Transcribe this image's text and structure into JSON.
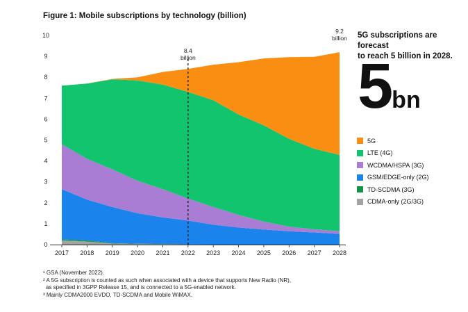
{
  "title": "Figure 1: Mobile subscriptions by technology (billion)",
  "callout": {
    "text_line1": "5G subscriptions are forecast",
    "text_line2": "to reach 5 billion in 2028.",
    "big_number": "5",
    "big_unit": "bn"
  },
  "footnotes": [
    "¹ GSA (November 2022).",
    "² A 5G subscription is counted as such when associated with a device that supports New Radio (NR),",
    "   as specified in 3GPP Release 15, and is connected to a 5G-enabled network.",
    "³ Mainly CDMA2000 EVDO, TD-SCDMA and Mobile WiMAX."
  ],
  "colors": {
    "5G": "#fa8e12",
    "LTE (4G)": "#13c46e",
    "WCDMA/HSPA (3G)": "#a97dd4",
    "GSM/EDGE-only (2G)": "#1b84ec",
    "TD-SCDMA (3G)": "#129447",
    "CDMA-only (2G/3G)": "#a3a3a3"
  },
  "chart_data": {
    "type": "area",
    "stacked": true,
    "x": [
      "2017",
      "2018",
      "2019",
      "2020",
      "2021",
      "2022",
      "2023",
      "2024",
      "2025",
      "2026",
      "2027",
      "2028"
    ],
    "ylim": [
      0,
      10
    ],
    "yticks": [
      "0",
      "1",
      "2",
      "3",
      "4",
      "5",
      "6",
      "7",
      "8",
      "9",
      "10"
    ],
    "grid": false,
    "legend_position": "right",
    "series": [
      {
        "name": "CDMA-only (2G/3G)",
        "values": [
          0.2,
          0.15,
          0.05,
          0.03,
          0.02,
          0.01,
          0,
          0,
          0,
          0,
          0,
          0
        ]
      },
      {
        "name": "TD-SCDMA (3G)",
        "values": [
          0.05,
          0.05,
          0.02,
          0.01,
          0.01,
          0,
          0,
          0,
          0,
          0,
          0,
          0
        ]
      },
      {
        "name": "GSM/EDGE-only (2G)",
        "values": [
          2.4,
          1.95,
          1.73,
          1.46,
          1.27,
          1.14,
          0.95,
          0.82,
          0.72,
          0.64,
          0.58,
          0.51
        ]
      },
      {
        "name": "WCDMA/HSPA (3G)",
        "values": [
          2.15,
          1.95,
          1.8,
          1.55,
          1.35,
          1.05,
          0.85,
          0.6,
          0.38,
          0.22,
          0.15,
          0.13
        ]
      },
      {
        "name": "LTE (4G)",
        "values": [
          2.8,
          3.6,
          4.3,
          4.8,
          5.0,
          5.1,
          5.1,
          4.8,
          4.6,
          4.2,
          3.85,
          3.65
        ]
      },
      {
        "name": "5G",
        "values": [
          0,
          0,
          0.02,
          0.15,
          0.6,
          1.1,
          1.7,
          2.5,
          3.2,
          3.9,
          4.4,
          4.91
        ]
      }
    ],
    "legend_order": [
      "5G",
      "LTE (4G)",
      "WCDMA/HSPA (3G)",
      "GSM/EDGE-only (2G)",
      "TD-SCDMA (3G)",
      "CDMA-only (2G/3G)"
    ],
    "annotations": [
      {
        "x": "2022",
        "value_label": "8.4",
        "unit_label": "billion",
        "dashed_line": true
      },
      {
        "x": "2028",
        "value_label": "9.2",
        "unit_label": "billion",
        "dashed_line": false
      }
    ]
  }
}
